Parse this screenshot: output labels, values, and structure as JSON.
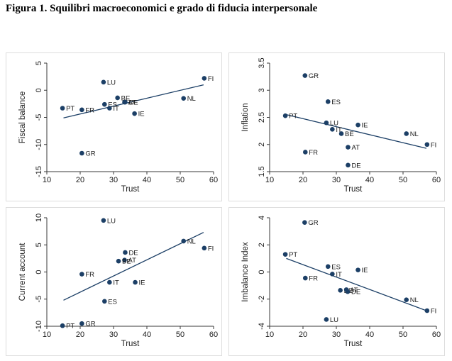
{
  "figure_title": "Figura 1. Squilibri macroeconomici e grado di fiducia interpersonale",
  "colors": {
    "marker": "#1c3f66",
    "line": "#1c3f66",
    "axis": "#3a3a3a",
    "frame": "#dddddd"
  },
  "chart_data": [
    {
      "type": "scatter",
      "xlabel": "Trust",
      "ylabel": "Fiscal balance",
      "xlim": [
        10,
        60
      ],
      "ylim": [
        -15,
        5
      ],
      "xticks": [
        10,
        20,
        30,
        40,
        50,
        60
      ],
      "yticks": [
        5,
        0,
        -5,
        -10,
        -15
      ],
      "fit_line": {
        "x": [
          15,
          57
        ],
        "y": [
          -5.1,
          1.0
        ]
      },
      "points": [
        {
          "label": "PT",
          "x": 14.7,
          "y": -3.3
        },
        {
          "label": "FR",
          "x": 20.5,
          "y": -3.6
        },
        {
          "label": "GR",
          "x": 20.5,
          "y": -11.6
        },
        {
          "label": "LU",
          "x": 27.0,
          "y": 1.5
        },
        {
          "label": "ES",
          "x": 27.3,
          "y": -2.6
        },
        {
          "label": "IT",
          "x": 28.8,
          "y": -3.3
        },
        {
          "label": "BE",
          "x": 31.2,
          "y": -1.4
        },
        {
          "label": "AT",
          "x": 33.3,
          "y": -2.2
        },
        {
          "label": "DE",
          "x": 33.5,
          "y": -2.2
        },
        {
          "label": "IE",
          "x": 36.3,
          "y": -4.3
        },
        {
          "label": "NL",
          "x": 51.0,
          "y": -1.5
        },
        {
          "label": "FI",
          "x": 57.2,
          "y": 2.2
        }
      ]
    },
    {
      "type": "scatter",
      "xlabel": "Trust",
      "ylabel": "Inflation",
      "xlim": [
        10,
        60
      ],
      "ylim": [
        1.5,
        3.5
      ],
      "xticks": [
        10,
        20,
        30,
        40,
        50,
        60
      ],
      "yticks": [
        3.5,
        3,
        2.5,
        2,
        1.5
      ],
      "fit_line": {
        "x": [
          15,
          57
        ],
        "y": [
          2.55,
          1.93
        ]
      },
      "points": [
        {
          "label": "GR",
          "x": 20.6,
          "y": 3.27
        },
        {
          "label": "ES",
          "x": 27.5,
          "y": 2.79
        },
        {
          "label": "PT",
          "x": 14.7,
          "y": 2.53
        },
        {
          "label": "LU",
          "x": 27.0,
          "y": 2.4
        },
        {
          "label": "IT",
          "x": 28.8,
          "y": 2.28
        },
        {
          "label": "BE",
          "x": 31.5,
          "y": 2.2
        },
        {
          "label": "IE",
          "x": 36.5,
          "y": 2.36
        },
        {
          "label": "NL",
          "x": 51.0,
          "y": 2.2
        },
        {
          "label": "FI",
          "x": 57.2,
          "y": 2.0
        },
        {
          "label": "AT",
          "x": 33.5,
          "y": 1.95
        },
        {
          "label": "FR",
          "x": 20.7,
          "y": 1.86
        },
        {
          "label": "DE",
          "x": 33.5,
          "y": 1.62
        }
      ]
    },
    {
      "type": "scatter",
      "xlabel": "Trust",
      "ylabel": "Current account",
      "xlim": [
        10,
        60
      ],
      "ylim": [
        -10,
        10
      ],
      "xticks": [
        10,
        20,
        30,
        40,
        50,
        60
      ],
      "yticks": [
        10,
        5,
        0,
        -5,
        -10
      ],
      "fit_line": {
        "x": [
          15,
          57
        ],
        "y": [
          -5.2,
          7.3
        ]
      },
      "points": [
        {
          "label": "LU",
          "x": 27.0,
          "y": 9.5
        },
        {
          "label": "NL",
          "x": 51.0,
          "y": 5.7
        },
        {
          "label": "FI",
          "x": 57.2,
          "y": 4.4
        },
        {
          "label": "DE",
          "x": 33.5,
          "y": 3.6
        },
        {
          "label": "AT",
          "x": 33.3,
          "y": 2.2
        },
        {
          "label": "BE",
          "x": 31.5,
          "y": 2.0
        },
        {
          "label": "FR",
          "x": 20.5,
          "y": -0.4
        },
        {
          "label": "IT",
          "x": 28.8,
          "y": -1.9
        },
        {
          "label": "IE",
          "x": 36.5,
          "y": -1.9
        },
        {
          "label": "ES",
          "x": 27.3,
          "y": -5.4
        },
        {
          "label": "GR",
          "x": 20.5,
          "y": -9.5
        },
        {
          "label": "PT",
          "x": 14.7,
          "y": -9.9
        }
      ]
    },
    {
      "type": "scatter",
      "xlabel": "Trust",
      "ylabel": "Imbalance Index",
      "xlim": [
        10,
        60
      ],
      "ylim": [
        -4,
        4
      ],
      "xticks": [
        10,
        20,
        30,
        40,
        50,
        60
      ],
      "yticks": [
        4,
        2,
        0,
        -2,
        -4
      ],
      "fit_line": {
        "x": [
          15,
          57
        ],
        "y": [
          1.0,
          -2.85
        ]
      },
      "points": [
        {
          "label": "GR",
          "x": 20.5,
          "y": 3.65
        },
        {
          "label": "PT",
          "x": 14.7,
          "y": 1.3
        },
        {
          "label": "ES",
          "x": 27.5,
          "y": 0.4
        },
        {
          "label": "IE",
          "x": 36.5,
          "y": 0.15
        },
        {
          "label": "IT",
          "x": 28.8,
          "y": -0.15
        },
        {
          "label": "FR",
          "x": 20.7,
          "y": -0.45
        },
        {
          "label": "BE",
          "x": 31.2,
          "y": -1.35
        },
        {
          "label": "AT",
          "x": 33.0,
          "y": -1.3
        },
        {
          "label": "DE",
          "x": 33.4,
          "y": -1.45
        },
        {
          "label": "NL",
          "x": 51.0,
          "y": -2.05
        },
        {
          "label": "FI",
          "x": 57.2,
          "y": -2.85
        },
        {
          "label": "LU",
          "x": 27.0,
          "y": -3.5
        }
      ]
    }
  ]
}
